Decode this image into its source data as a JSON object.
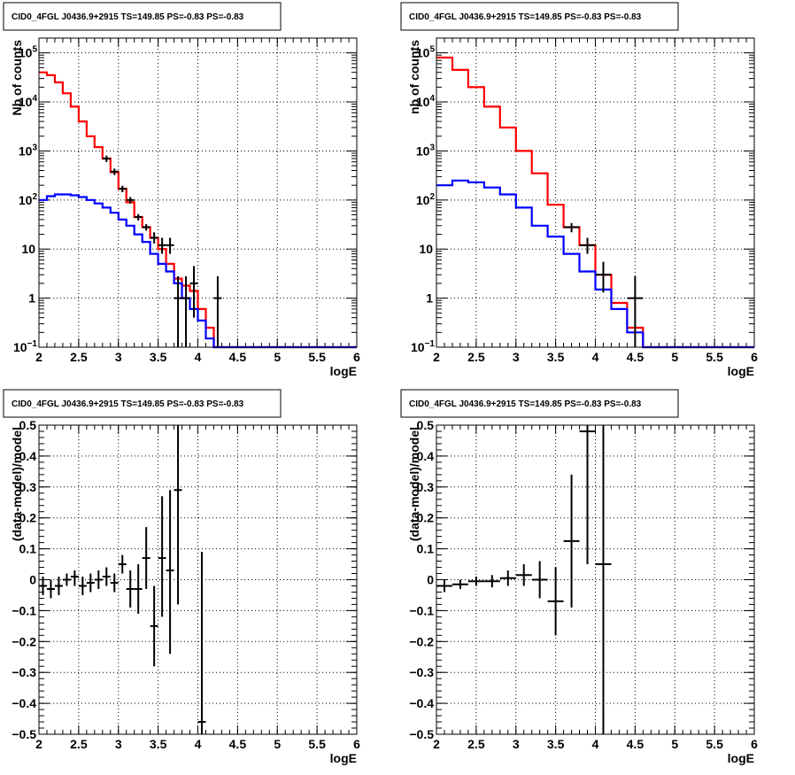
{
  "colors": {
    "red": "#ff0000",
    "blue": "#0000ff",
    "points": "#000000"
  },
  "chart_data": [
    {
      "type": "line",
      "title": "CID0_4FGL J0436.9+2915 TS=149.85 PS=-0.83 PS=-0.83",
      "xlabel": "logE",
      "ylabel": "Nb of counts",
      "xlim": [
        2,
        6
      ],
      "ylim": [
        0.1,
        200000
      ],
      "ylog": true,
      "grid": true,
      "x_ticks": [
        "2",
        "2.5",
        "3",
        "3.5",
        "4",
        "4.5",
        "5",
        "5.5",
        "6"
      ],
      "y_ticks": [
        {
          "v": 0.1,
          "label": "10",
          "exp": "−1"
        },
        {
          "v": 1,
          "label": "1",
          "exp": ""
        },
        {
          "v": 10,
          "label": "10",
          "exp": ""
        },
        {
          "v": 100,
          "label": "10",
          "exp": "2"
        },
        {
          "v": 1000,
          "label": "10",
          "exp": "3"
        },
        {
          "v": 10000,
          "label": "10",
          "exp": "4"
        },
        {
          "v": 100000,
          "label": "10",
          "exp": "5"
        }
      ],
      "bin_edges": [
        2.0,
        2.1,
        2.2,
        2.3,
        2.4,
        2.5,
        2.6,
        2.7,
        2.8,
        2.9,
        3.0,
        3.1,
        3.2,
        3.3,
        3.4,
        3.5,
        3.6,
        3.7,
        3.8,
        3.9,
        4.0,
        4.1,
        4.2,
        4.3,
        4.4,
        4.5,
        4.6,
        4.7,
        4.8,
        4.9,
        5.0,
        5.1,
        5.2,
        5.3,
        5.4,
        5.5,
        5.6,
        5.7,
        5.8,
        5.9,
        6.0
      ],
      "series": [
        {
          "color": "#ff0000",
          "values": [
            40000,
            35000,
            25000,
            15000,
            8000,
            4000,
            2000,
            1200,
            700,
            370,
            170,
            90,
            45,
            28,
            17,
            10,
            5,
            2.5,
            1.8,
            1.4,
            0.6,
            0.25,
            0.1,
            0.1,
            0.1,
            0.1,
            0.1,
            0.1,
            0.1,
            0.1,
            0.1,
            0.1,
            0.1,
            0.1,
            0.1,
            0.1,
            0.1,
            0.1,
            0.1,
            0.1
          ]
        },
        {
          "color": "#0000ff",
          "values": [
            100,
            120,
            130,
            130,
            125,
            115,
            100,
            85,
            70,
            55,
            40,
            30,
            20,
            14,
            8,
            5,
            3.5,
            2,
            1,
            0.6,
            0.35,
            0.15,
            0.1,
            0.1,
            0.1,
            0.1,
            0.1,
            0.1,
            0.1,
            0.1,
            0.1,
            0.1,
            0.1,
            0.1,
            0.1,
            0.1,
            0.1,
            0.1,
            0.1,
            0.1
          ]
        }
      ],
      "points": [
        {
          "x": 2.85,
          "y": 700,
          "xerr": 0.05
        },
        {
          "x": 2.95,
          "y": 380,
          "xerr": 0.05
        },
        {
          "x": 3.05,
          "y": 170,
          "xerr": 0.05
        },
        {
          "x": 3.15,
          "y": 100,
          "xerr": 0.05
        },
        {
          "x": 3.25,
          "y": 45,
          "xerr": 0.05
        },
        {
          "x": 3.35,
          "y": 28,
          "xerr": 0.05
        },
        {
          "x": 3.45,
          "y": 17,
          "xerr": 0.05,
          "ylo": 13,
          "yhi": 22
        },
        {
          "x": 3.55,
          "y": 12,
          "xerr": 0.05,
          "ylo": 8,
          "yhi": 17
        },
        {
          "x": 3.65,
          "y": 12,
          "xerr": 0.05,
          "ylo": 8,
          "yhi": 17
        },
        {
          "x": 3.75,
          "y": 1,
          "xerr": 0.05,
          "ylo": 0.1,
          "yhi": 2.8
        },
        {
          "x": 3.85,
          "y": 1,
          "xerr": 0.05,
          "ylo": 0.1,
          "yhi": 2.8
        },
        {
          "x": 3.95,
          "y": 2,
          "xerr": 0.05,
          "ylo": 0.4,
          "yhi": 4.5
        },
        {
          "x": 4.25,
          "y": 1,
          "xerr": 0.05,
          "ylo": 0.1,
          "yhi": 2.8
        }
      ]
    },
    {
      "type": "line",
      "title": "CID0_4FGL J0436.9+2915 TS=149.85 PS=-0.83 PS=-0.83",
      "xlabel": "logE",
      "ylabel": "nb of counts",
      "xlim": [
        2,
        6
      ],
      "ylim": [
        0.1,
        200000
      ],
      "ylog": true,
      "grid": true,
      "x_ticks": [
        "2",
        "2.5",
        "3",
        "3.5",
        "4",
        "4.5",
        "5",
        "5.5",
        "6"
      ],
      "y_ticks": [
        {
          "v": 0.1,
          "label": "10",
          "exp": "−1"
        },
        {
          "v": 1,
          "label": "1",
          "exp": ""
        },
        {
          "v": 10,
          "label": "10",
          "exp": ""
        },
        {
          "v": 100,
          "label": "10",
          "exp": "2"
        },
        {
          "v": 1000,
          "label": "10",
          "exp": "3"
        },
        {
          "v": 10000,
          "label": "10",
          "exp": "4"
        },
        {
          "v": 100000,
          "label": "10",
          "exp": "5"
        }
      ],
      "bin_edges": [
        2.0,
        2.2,
        2.4,
        2.6,
        2.8,
        3.0,
        3.2,
        3.4,
        3.6,
        3.8,
        4.0,
        4.2,
        4.4,
        4.6,
        4.8,
        5.0,
        5.2,
        5.4,
        5.6,
        5.8,
        6.0
      ],
      "series": [
        {
          "color": "#ff0000",
          "values": [
            80000,
            45000,
            20000,
            8000,
            3000,
            1000,
            350,
            80,
            28,
            12,
            3,
            0.8,
            0.25,
            0.1,
            0.1,
            0.1,
            0.1,
            0.1,
            0.1,
            0.1
          ]
        },
        {
          "color": "#0000ff",
          "values": [
            200,
            250,
            230,
            180,
            130,
            70,
            30,
            18,
            8,
            3.5,
            1.5,
            0.6,
            0.2,
            0.1,
            0.1,
            0.1,
            0.1,
            0.1,
            0.1,
            0.1
          ]
        }
      ],
      "points": [
        {
          "x": 3.7,
          "y": 28,
          "xerr": 0.1,
          "ylo": 22,
          "yhi": 34
        },
        {
          "x": 3.9,
          "y": 12,
          "xerr": 0.1,
          "ylo": 8,
          "yhi": 17
        },
        {
          "x": 4.1,
          "y": 3,
          "xerr": 0.1,
          "ylo": 1.3,
          "yhi": 5.5
        },
        {
          "x": 4.5,
          "y": 1,
          "xerr": 0.1,
          "ylo": 0.1,
          "yhi": 2.8
        }
      ]
    },
    {
      "type": "scatter",
      "title": "CID0_4FGL J0436.9+2915 TS=149.85 PS=-0.83 PS=-0.83",
      "xlabel": "logE",
      "ylabel": "(data-model)/model",
      "xlim": [
        2,
        6
      ],
      "ylim": [
        -0.5,
        0.5
      ],
      "ylog": false,
      "grid": true,
      "x_ticks": [
        "2",
        "2.5",
        "3",
        "3.5",
        "4",
        "4.5",
        "5",
        "5.5",
        "6"
      ],
      "y_ticks": [
        "−0.5",
        "−0.4",
        "−0.3",
        "−0.2",
        "−0.1",
        "0",
        "0.1",
        "0.2",
        "0.3",
        "0.4",
        "0.5"
      ],
      "points": [
        {
          "x": 2.05,
          "y": -0.02,
          "xerr": 0.05,
          "ylo": -0.05,
          "yhi": 0.01
        },
        {
          "x": 2.15,
          "y": -0.03,
          "xerr": 0.05,
          "ylo": -0.06,
          "yhi": 0.0
        },
        {
          "x": 2.25,
          "y": -0.02,
          "xerr": 0.05,
          "ylo": -0.05,
          "yhi": 0.01
        },
        {
          "x": 2.35,
          "y": 0.0,
          "xerr": 0.05,
          "ylo": -0.02,
          "yhi": 0.02
        },
        {
          "x": 2.45,
          "y": 0.01,
          "xerr": 0.05,
          "ylo": -0.02,
          "yhi": 0.03
        },
        {
          "x": 2.55,
          "y": -0.02,
          "xerr": 0.05,
          "ylo": -0.05,
          "yhi": 0.01
        },
        {
          "x": 2.65,
          "y": -0.01,
          "xerr": 0.05,
          "ylo": -0.04,
          "yhi": 0.02
        },
        {
          "x": 2.75,
          "y": 0.0,
          "xerr": 0.05,
          "ylo": -0.03,
          "yhi": 0.03
        },
        {
          "x": 2.85,
          "y": 0.01,
          "xerr": 0.05,
          "ylo": -0.02,
          "yhi": 0.04
        },
        {
          "x": 2.95,
          "y": -0.01,
          "xerr": 0.05,
          "ylo": -0.04,
          "yhi": 0.02
        },
        {
          "x": 3.05,
          "y": 0.05,
          "xerr": 0.05,
          "ylo": 0.02,
          "yhi": 0.08
        },
        {
          "x": 3.15,
          "y": -0.03,
          "xerr": 0.05,
          "ylo": -0.09,
          "yhi": 0.03
        },
        {
          "x": 3.25,
          "y": -0.03,
          "xerr": 0.05,
          "ylo": -0.11,
          "yhi": 0.05
        },
        {
          "x": 3.35,
          "y": 0.07,
          "xerr": 0.05,
          "ylo": -0.03,
          "yhi": 0.17
        },
        {
          "x": 3.45,
          "y": -0.15,
          "xerr": 0.05,
          "ylo": -0.28,
          "yhi": -0.02
        },
        {
          "x": 3.55,
          "y": 0.07,
          "xerr": 0.05,
          "ylo": -0.12,
          "yhi": 0.27
        },
        {
          "x": 3.65,
          "y": 0.03,
          "xerr": 0.05,
          "ylo": -0.24,
          "yhi": 0.29
        },
        {
          "x": 3.75,
          "y": 0.29,
          "xerr": 0.05,
          "ylo": -0.08,
          "yhi": 0.5
        },
        {
          "x": 4.05,
          "y": -0.46,
          "xerr": 0.05,
          "ylo": -0.5,
          "yhi": 0.09
        }
      ]
    },
    {
      "type": "scatter",
      "title": "CID0_4FGL J0436.9+2915 TS=149.85 PS=-0.83 PS=-0.83",
      "xlabel": "logE",
      "ylabel": "(data-model)/model",
      "xlim": [
        2,
        6
      ],
      "ylim": [
        -0.5,
        0.5
      ],
      "ylog": false,
      "grid": true,
      "x_ticks": [
        "2",
        "2.5",
        "3",
        "3.5",
        "4",
        "4.5",
        "5",
        "5.5",
        "6"
      ],
      "y_ticks": [
        "−0.5",
        "−0.4",
        "−0.3",
        "−0.2",
        "−0.1",
        "0",
        "0.1",
        "0.2",
        "0.3",
        "0.4",
        "0.5"
      ],
      "points": [
        {
          "x": 2.1,
          "y": -0.02,
          "xerr": 0.1,
          "ylo": -0.04,
          "yhi": 0.0
        },
        {
          "x": 2.3,
          "y": -0.015,
          "xerr": 0.1,
          "ylo": -0.03,
          "yhi": 0.0
        },
        {
          "x": 2.5,
          "y": -0.005,
          "xerr": 0.1,
          "ylo": -0.02,
          "yhi": 0.01
        },
        {
          "x": 2.7,
          "y": -0.005,
          "xerr": 0.1,
          "ylo": -0.025,
          "yhi": 0.015
        },
        {
          "x": 2.9,
          "y": 0.005,
          "xerr": 0.1,
          "ylo": -0.02,
          "yhi": 0.03
        },
        {
          "x": 3.1,
          "y": 0.015,
          "xerr": 0.1,
          "ylo": -0.02,
          "yhi": 0.05
        },
        {
          "x": 3.3,
          "y": 0.0,
          "xerr": 0.1,
          "ylo": -0.06,
          "yhi": 0.06
        },
        {
          "x": 3.5,
          "y": -0.07,
          "xerr": 0.1,
          "ylo": -0.18,
          "yhi": 0.04
        },
        {
          "x": 3.7,
          "y": 0.125,
          "xerr": 0.1,
          "ylo": -0.09,
          "yhi": 0.34
        },
        {
          "x": 3.9,
          "y": 0.48,
          "xerr": 0.1,
          "ylo": 0.05,
          "yhi": 0.5
        },
        {
          "x": 4.1,
          "y": 0.05,
          "xerr": 0.1,
          "ylo": -0.5,
          "yhi": 0.5
        }
      ]
    }
  ]
}
